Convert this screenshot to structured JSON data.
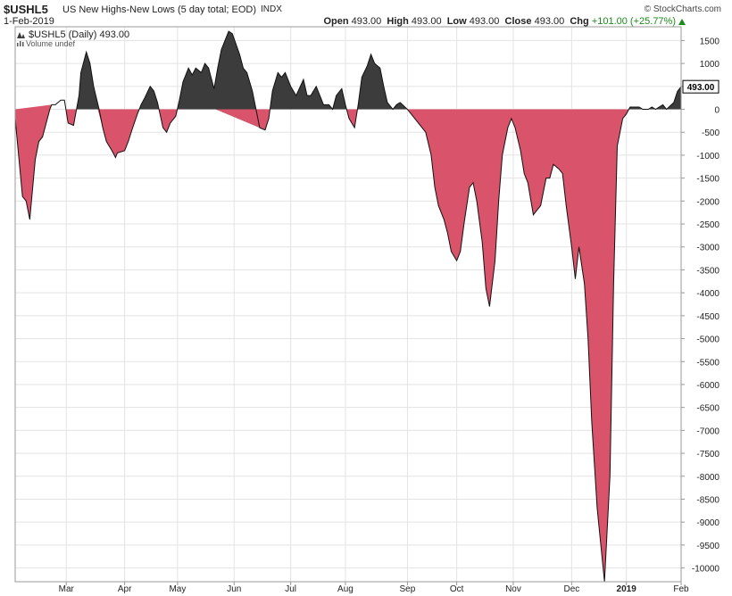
{
  "header": {
    "symbol": "$USHL5",
    "description": "US New Highs-New Lows (5 day total; EOD)",
    "exchange": "INDX",
    "credit": "© StockCharts.com",
    "date": "1-Feb-2019",
    "open_label": "Open",
    "open": "493.00",
    "high_label": "High",
    "high": "493.00",
    "low_label": "Low",
    "low": "493.00",
    "close_label": "Close",
    "close": "493.00",
    "chg_label": "Chg",
    "chg": "+101.00 (+25.77%)"
  },
  "legend": {
    "series_label": "$USHL5 (Daily) 493.00",
    "volume_label": "Volume undef"
  },
  "last_value_tag": "493.00",
  "colors": {
    "positive_fill": "#3c3c3c",
    "negative_fill": "#d9536a",
    "line": "#111111",
    "grid": "#e3e3e3",
    "change_up": "#1a8a1a"
  },
  "chart_data": {
    "type": "area",
    "ylim": [
      -10300,
      1800
    ],
    "yticks": [
      1500,
      1000,
      500,
      0,
      -500,
      -1000,
      -1500,
      -2000,
      -2500,
      -3000,
      -3500,
      -4000,
      -4500,
      -5000,
      -5500,
      -6000,
      -6500,
      -7000,
      -7500,
      -8000,
      -8500,
      -9000,
      -9500,
      -10000
    ],
    "ytick_labels": [
      "1500",
      "1000",
      "500",
      "0",
      "-500",
      "-1000",
      "-1500",
      "-2000",
      "-2500",
      "-3000",
      "-3500",
      "-4000",
      "-4500",
      "-5000",
      "-5500",
      "-6000",
      "-6500",
      "-7000",
      "-7500",
      "-8000",
      "-8500",
      "-9000",
      "-9500",
      "-10000"
    ],
    "xlim": [
      "2018-02-01",
      "2019-02-01"
    ],
    "x_ticks": [
      {
        "date": "2018-03-01",
        "label": "Mar"
      },
      {
        "date": "2018-04-02",
        "label": "Apr"
      },
      {
        "date": "2018-05-01",
        "label": "May"
      },
      {
        "date": "2018-06-01",
        "label": "Jun"
      },
      {
        "date": "2018-07-02",
        "label": "Jul"
      },
      {
        "date": "2018-08-01",
        "label": "Aug"
      },
      {
        "date": "2018-09-04",
        "label": "Sep"
      },
      {
        "date": "2018-10-01",
        "label": "Oct"
      },
      {
        "date": "2018-11-01",
        "label": "Nov"
      },
      {
        "date": "2018-12-03",
        "label": "Dec"
      },
      {
        "date": "2019-01-02",
        "label": "2019",
        "bold": true
      },
      {
        "date": "2019-02-01",
        "label": "Feb"
      }
    ],
    "series": [
      {
        "values": [
          [
            "2018-02-01",
            -200
          ],
          [
            "2018-02-05",
            -1900
          ],
          [
            "2018-02-07",
            -2000
          ],
          [
            "2018-02-09",
            -2400
          ],
          [
            "2018-02-12",
            -1100
          ],
          [
            "2018-02-14",
            -700
          ],
          [
            "2018-02-16",
            -600
          ],
          [
            "2018-02-20",
            0
          ],
          [
            "2018-02-21",
            100
          ],
          [
            "2018-02-23",
            100
          ],
          [
            "2018-02-26",
            200
          ],
          [
            "2018-02-28",
            200
          ],
          [
            "2018-03-02",
            -300
          ],
          [
            "2018-03-05",
            -350
          ],
          [
            "2018-03-08",
            300
          ],
          [
            "2018-03-09",
            800
          ],
          [
            "2018-03-12",
            1250
          ],
          [
            "2018-03-14",
            1000
          ],
          [
            "2018-03-16",
            500
          ],
          [
            "2018-03-19",
            0
          ],
          [
            "2018-03-21",
            -400
          ],
          [
            "2018-03-23",
            -700
          ],
          [
            "2018-03-26",
            -900
          ],
          [
            "2018-03-28",
            -1050
          ],
          [
            "2018-03-29",
            -950
          ],
          [
            "2018-04-02",
            -900
          ],
          [
            "2018-04-04",
            -700
          ],
          [
            "2018-04-06",
            -450
          ],
          [
            "2018-04-09",
            -100
          ],
          [
            "2018-04-11",
            100
          ],
          [
            "2018-04-13",
            250
          ],
          [
            "2018-04-16",
            500
          ],
          [
            "2018-04-18",
            400
          ],
          [
            "2018-04-20",
            150
          ],
          [
            "2018-04-23",
            -400
          ],
          [
            "2018-04-25",
            -500
          ],
          [
            "2018-04-27",
            -300
          ],
          [
            "2018-04-30",
            -150
          ],
          [
            "2018-05-02",
            200
          ],
          [
            "2018-05-04",
            600
          ],
          [
            "2018-05-07",
            900
          ],
          [
            "2018-05-09",
            750
          ],
          [
            "2018-05-11",
            900
          ],
          [
            "2018-05-14",
            800
          ],
          [
            "2018-05-16",
            1000
          ],
          [
            "2018-05-18",
            900
          ],
          [
            "2018-05-21",
            450
          ],
          [
            "2018-05-23",
            900
          ],
          [
            "2018-05-25",
            1300
          ],
          [
            "2018-05-29",
            1700
          ],
          [
            "2018-05-31",
            1650
          ],
          [
            "2018-06-04",
            1200
          ],
          [
            "2018-06-06",
            900
          ],
          [
            "2018-06-08",
            800
          ],
          [
            "2018-06-11",
            400
          ],
          [
            "2018-06-13",
            0
          ],
          [
            "2018-06-15",
            -400
          ],
          [
            "2018-06-18",
            -450
          ],
          [
            "2018-06-20",
            -200
          ],
          [
            "2018-06-22",
            400
          ],
          [
            "2018-06-25",
            800
          ],
          [
            "2018-06-27",
            700
          ],
          [
            "2018-06-29",
            800
          ],
          [
            "2018-07-02",
            500
          ],
          [
            "2018-07-05",
            300
          ],
          [
            "2018-07-09",
            650
          ],
          [
            "2018-07-11",
            300
          ],
          [
            "2018-07-13",
            300
          ],
          [
            "2018-07-16",
            500
          ],
          [
            "2018-07-18",
            300
          ],
          [
            "2018-07-20",
            100
          ],
          [
            "2018-07-23",
            100
          ],
          [
            "2018-07-25",
            0
          ],
          [
            "2018-07-27",
            300
          ],
          [
            "2018-07-30",
            450
          ],
          [
            "2018-08-01",
            100
          ],
          [
            "2018-08-03",
            -200
          ],
          [
            "2018-08-06",
            -400
          ],
          [
            "2018-08-08",
            100
          ],
          [
            "2018-08-10",
            700
          ],
          [
            "2018-08-13",
            950
          ],
          [
            "2018-08-15",
            1200
          ],
          [
            "2018-08-17",
            1000
          ],
          [
            "2018-08-20",
            900
          ],
          [
            "2018-08-22",
            500
          ],
          [
            "2018-08-24",
            150
          ],
          [
            "2018-08-27",
            0
          ],
          [
            "2018-08-29",
            100
          ],
          [
            "2018-08-31",
            150
          ],
          [
            "2018-09-04",
            0
          ],
          [
            "2018-09-06",
            -100
          ],
          [
            "2018-09-10",
            -300
          ],
          [
            "2018-09-12",
            -400
          ],
          [
            "2018-09-14",
            -500
          ],
          [
            "2018-09-17",
            -1000
          ],
          [
            "2018-09-19",
            -1700
          ],
          [
            "2018-09-21",
            -2100
          ],
          [
            "2018-09-24",
            -2400
          ],
          [
            "2018-09-26",
            -2700
          ],
          [
            "2018-09-28",
            -3100
          ],
          [
            "2018-10-01",
            -3300
          ],
          [
            "2018-10-03",
            -3100
          ],
          [
            "2018-10-05",
            -2500
          ],
          [
            "2018-10-08",
            -1700
          ],
          [
            "2018-10-10",
            -1600
          ],
          [
            "2018-10-12",
            -2000
          ],
          [
            "2018-10-15",
            -2900
          ],
          [
            "2018-10-17",
            -3900
          ],
          [
            "2018-10-19",
            -4300
          ],
          [
            "2018-10-22",
            -3300
          ],
          [
            "2018-10-24",
            -2000
          ],
          [
            "2018-10-26",
            -1000
          ],
          [
            "2018-10-29",
            -400
          ],
          [
            "2018-10-31",
            -200
          ],
          [
            "2018-11-02",
            -400
          ],
          [
            "2018-11-05",
            -900
          ],
          [
            "2018-11-07",
            -1400
          ],
          [
            "2018-11-09",
            -1600
          ],
          [
            "2018-11-12",
            -2300
          ],
          [
            "2018-11-14",
            -2200
          ],
          [
            "2018-11-16",
            -2100
          ],
          [
            "2018-11-19",
            -1500
          ],
          [
            "2018-11-21",
            -1500
          ],
          [
            "2018-11-23",
            -1200
          ],
          [
            "2018-11-26",
            -1300
          ],
          [
            "2018-11-28",
            -1400
          ],
          [
            "2018-11-30",
            -2100
          ],
          [
            "2018-12-03",
            -3000
          ],
          [
            "2018-12-05",
            -3700
          ],
          [
            "2018-12-07",
            -3000
          ],
          [
            "2018-12-10",
            -3800
          ],
          [
            "2018-12-12",
            -5000
          ],
          [
            "2018-12-14",
            -6800
          ],
          [
            "2018-12-17",
            -8700
          ],
          [
            "2018-12-19",
            -9500
          ],
          [
            "2018-12-21",
            -10300
          ],
          [
            "2018-12-24",
            -8000
          ],
          [
            "2018-12-26",
            -3800
          ],
          [
            "2018-12-28",
            -800
          ],
          [
            "2018-12-31",
            -200
          ],
          [
            "2019-01-02",
            -100
          ],
          [
            "2019-01-04",
            50
          ],
          [
            "2019-01-07",
            50
          ],
          [
            "2019-01-09",
            50
          ],
          [
            "2019-01-11",
            0
          ],
          [
            "2019-01-14",
            0
          ],
          [
            "2019-01-16",
            50
          ],
          [
            "2019-01-18",
            0
          ],
          [
            "2019-01-22",
            100
          ],
          [
            "2019-01-24",
            0
          ],
          [
            "2019-01-28",
            150
          ],
          [
            "2019-01-30",
            392
          ],
          [
            "2019-02-01",
            493
          ]
        ]
      }
    ]
  }
}
